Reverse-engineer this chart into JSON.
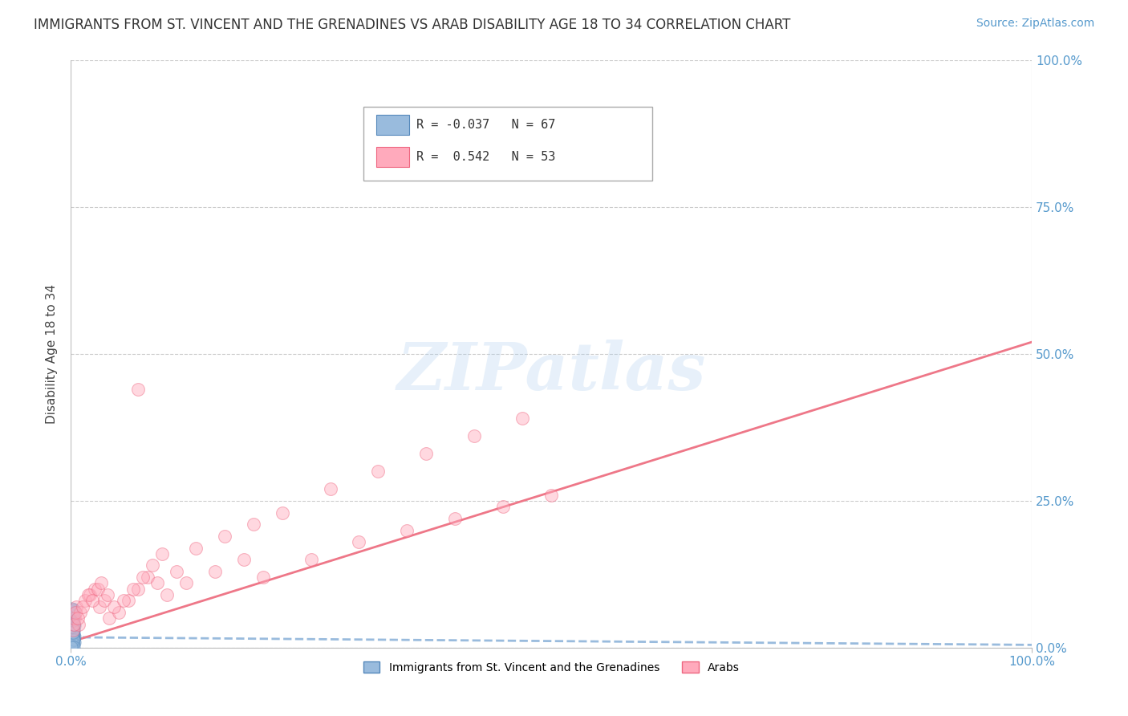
{
  "title": "IMMIGRANTS FROM ST. VINCENT AND THE GRENADINES VS ARAB DISABILITY AGE 18 TO 34 CORRELATION CHART",
  "source": "Source: ZipAtlas.com",
  "ylabel": "Disability Age 18 to 34",
  "xlim": [
    0.0,
    1.0
  ],
  "ylim": [
    0.0,
    1.0
  ],
  "xtick_positions": [
    0.0,
    1.0
  ],
  "xtick_labels": [
    "0.0%",
    "100.0%"
  ],
  "ytick_positions": [
    0.0,
    0.25,
    0.5,
    0.75,
    1.0
  ],
  "ytick_labels": [
    "0.0%",
    "25.0%",
    "50.0%",
    "75.0%",
    "100.0%"
  ],
  "watermark_text": "ZIPatlas",
  "color_blue_fill": "#99BBDD",
  "color_blue_edge": "#5588BB",
  "color_pink_fill": "#FFAABC",
  "color_pink_edge": "#EE6680",
  "color_line_blue": "#99BBDD",
  "color_line_pink": "#EE7788",
  "background": "#FFFFFF",
  "grid_color": "#CCCCCC",
  "tick_color": "#5599CC",
  "blue_scatter_x": [
    0.002,
    0.003,
    0.001,
    0.004,
    0.002,
    0.003,
    0.001,
    0.002,
    0.001,
    0.003,
    0.002,
    0.001,
    0.004,
    0.002,
    0.003,
    0.001,
    0.002,
    0.003,
    0.001,
    0.002,
    0.004,
    0.002,
    0.001,
    0.003,
    0.002,
    0.001,
    0.002,
    0.003,
    0.001,
    0.002,
    0.003,
    0.001,
    0.002,
    0.001,
    0.003,
    0.002,
    0.001,
    0.002,
    0.003,
    0.001,
    0.002,
    0.003,
    0.001,
    0.002,
    0.001,
    0.003,
    0.002,
    0.001,
    0.002,
    0.003,
    0.001,
    0.002,
    0.003,
    0.001,
    0.002,
    0.001,
    0.003,
    0.002,
    0.001,
    0.002,
    0.003,
    0.001,
    0.002,
    0.001,
    0.003,
    0.002,
    0.001
  ],
  "blue_scatter_y": [
    0.03,
    0.02,
    0.04,
    0.01,
    0.025,
    0.015,
    0.035,
    0.022,
    0.045,
    0.018,
    0.028,
    0.012,
    0.038,
    0.005,
    0.032,
    0.008,
    0.042,
    0.016,
    0.027,
    0.009,
    0.019,
    0.033,
    0.006,
    0.023,
    0.013,
    0.037,
    0.003,
    0.029,
    0.043,
    0.017,
    0.007,
    0.031,
    0.021,
    0.011,
    0.041,
    0.024,
    0.004,
    0.034,
    0.014,
    0.044,
    0.026,
    0.002,
    0.036,
    0.046,
    0.001,
    0.039,
    0.047,
    0.048,
    0.049,
    0.05,
    0.051,
    0.052,
    0.053,
    0.054,
    0.055,
    0.056,
    0.057,
    0.058,
    0.059,
    0.06,
    0.061,
    0.062,
    0.063,
    0.064,
    0.065,
    0.066,
    0.067
  ],
  "pink_scatter_x": [
    0.002,
    0.004,
    0.006,
    0.008,
    0.01,
    0.015,
    0.02,
    0.025,
    0.03,
    0.035,
    0.04,
    0.05,
    0.06,
    0.07,
    0.08,
    0.09,
    0.1,
    0.12,
    0.15,
    0.18,
    0.2,
    0.25,
    0.3,
    0.35,
    0.4,
    0.45,
    0.5,
    0.003,
    0.005,
    0.007,
    0.012,
    0.018,
    0.022,
    0.028,
    0.032,
    0.038,
    0.045,
    0.055,
    0.065,
    0.075,
    0.085,
    0.095,
    0.11,
    0.13,
    0.16,
    0.19,
    0.22,
    0.27,
    0.32,
    0.37,
    0.42,
    0.47,
    0.07
  ],
  "pink_scatter_y": [
    0.03,
    0.05,
    0.07,
    0.04,
    0.06,
    0.08,
    0.09,
    0.1,
    0.07,
    0.08,
    0.05,
    0.06,
    0.08,
    0.1,
    0.12,
    0.11,
    0.09,
    0.11,
    0.13,
    0.15,
    0.12,
    0.15,
    0.18,
    0.2,
    0.22,
    0.24,
    0.26,
    0.04,
    0.06,
    0.05,
    0.07,
    0.09,
    0.08,
    0.1,
    0.11,
    0.09,
    0.07,
    0.08,
    0.1,
    0.12,
    0.14,
    0.16,
    0.13,
    0.17,
    0.19,
    0.21,
    0.23,
    0.27,
    0.3,
    0.33,
    0.36,
    0.39,
    0.44
  ],
  "blue_line_x": [
    0.0,
    1.0
  ],
  "blue_line_y": [
    0.018,
    0.005
  ],
  "pink_line_x": [
    0.0,
    1.0
  ],
  "pink_line_y": [
    0.01,
    0.52
  ],
  "title_fontsize": 12,
  "source_fontsize": 10,
  "ylabel_fontsize": 11,
  "tick_fontsize": 11,
  "legend_fontsize": 11,
  "watermark_fontsize": 60,
  "scatter_size_blue": 120,
  "scatter_size_pink": 130,
  "scatter_alpha": 0.45,
  "line_width": 2.0
}
